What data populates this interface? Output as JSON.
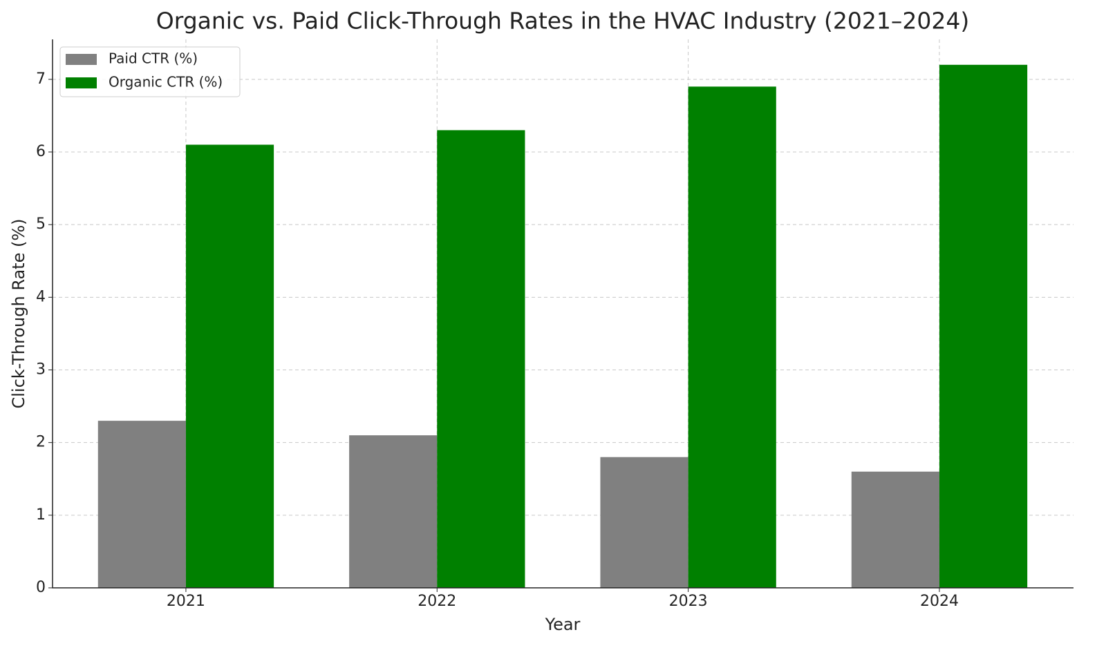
{
  "chart_data": {
    "type": "bar",
    "title": "Organic vs. Paid Click-Through Rates in the HVAC Industry (2021–2024)",
    "x_label": "Year",
    "y_label": "Click-Through Rate (%)",
    "categories": [
      "2021",
      "2022",
      "2023",
      "2024"
    ],
    "series": [
      {
        "name": "Paid CTR (%)",
        "color": "#808080",
        "values": [
          2.3,
          2.1,
          1.8,
          1.6
        ]
      },
      {
        "name": "Organic CTR (%)",
        "color": "#008000",
        "values": [
          6.1,
          6.3,
          6.9,
          7.2
        ]
      }
    ],
    "ylim": [
      0,
      7.55
    ],
    "yticks": [
      0,
      1,
      2,
      3,
      4,
      5,
      6,
      7
    ],
    "grid": true,
    "legend": "upper left"
  }
}
